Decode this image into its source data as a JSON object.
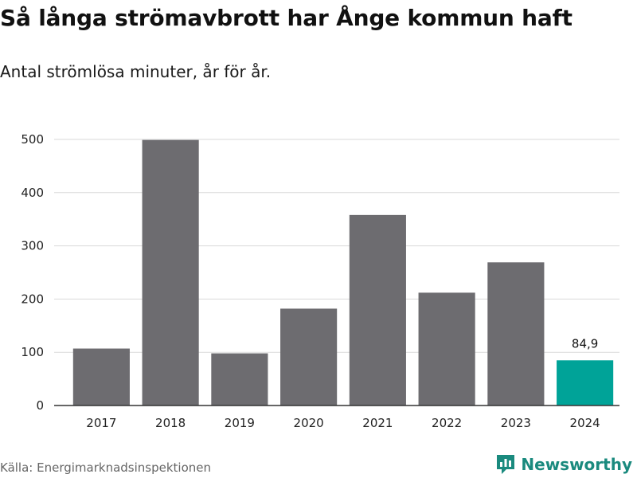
{
  "title": "Så långa strömavbrott har Ånge kommun haft",
  "subtitle": "Antal strömlösa minuter, år för år.",
  "source": "Källa: Energimarknadsinspektionen",
  "brand": {
    "name": "Newsworthy",
    "icon": "newsworthy-logo-icon"
  },
  "colors": {
    "bar": "#6d6c70",
    "highlight": "#00a398",
    "grid": "#d9d9d9",
    "axis": "#333333"
  },
  "chart_data": {
    "type": "bar",
    "title": "Så långa strömavbrott har Ånge kommun haft",
    "subtitle": "Antal strömlösa minuter, år för år.",
    "xlabel": "",
    "ylabel": "",
    "categories": [
      "2017",
      "2018",
      "2019",
      "2020",
      "2021",
      "2022",
      "2023",
      "2024"
    ],
    "values": [
      107,
      499,
      98,
      182,
      358,
      212,
      269,
      84.9
    ],
    "highlight_index": 7,
    "data_labels": [
      {
        "index": 7,
        "text": "84,9"
      }
    ],
    "ylim": [
      0,
      500
    ],
    "yticks": [
      0,
      100,
      200,
      300,
      400,
      500
    ],
    "grid": true,
    "legend": "none"
  }
}
